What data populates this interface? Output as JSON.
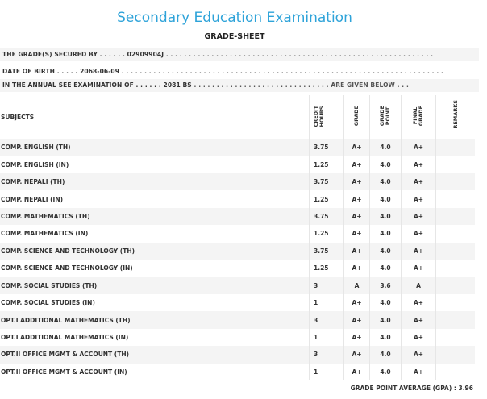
{
  "header": {
    "title": "Secondary Education Examination",
    "subtitle": "GRADE-SHEET"
  },
  "info": {
    "secured_by_prefix": "THE GRADE(S) SECURED BY . . . . . .",
    "symbol_no": "02909904J",
    "secured_by_suffix": ". . . . . . . . . . . . . . . . . . . . . . . . . . . . . . . . . . . . . . . . . . . . . . . . . . . . . . . . . . .",
    "dob_prefix": "DATE OF BIRTH . . . . .",
    "dob": "2068-06-09",
    "dob_suffix": ". . . . . . . . . . . . . . . . . . . . . . . . . . . . . . . . . . . . . . . . . . . . . . . . . . . . . . . . . . . . . . . . . . . . . . .",
    "exam_prefix": "IN THE ANNUAL SEE EXAMINATION OF . . . . . .",
    "exam_year": "2081 BS",
    "exam_suffix": ". . . . . . . . . . . . . . . . . . . . . . . . . . . . . . ARE GIVEN BELOW . . ."
  },
  "table": {
    "headers": {
      "subjects": "SUBJECTS",
      "credit_hours": "CREDIT\nHOURS",
      "grade": "GRADE",
      "grade_point": "GRADE\nPOINT",
      "final_grade": "FINAL\nGRADE",
      "remarks": "REMARKS"
    },
    "rows": [
      {
        "subject": "COMP. ENGLISH (TH)",
        "credit": "3.75",
        "grade": "A+",
        "gp": "4.0",
        "final": "A+"
      },
      {
        "subject": "COMP. ENGLISH (IN)",
        "credit": "1.25",
        "grade": "A+",
        "gp": "4.0",
        "final": "A+"
      },
      {
        "subject": "COMP. NEPALI (TH)",
        "credit": "3.75",
        "grade": "A+",
        "gp": "4.0",
        "final": "A+"
      },
      {
        "subject": "COMP. NEPALI (IN)",
        "credit": "1.25",
        "grade": "A+",
        "gp": "4.0",
        "final": "A+"
      },
      {
        "subject": "COMP. MATHEMATICS (TH)",
        "credit": "3.75",
        "grade": "A+",
        "gp": "4.0",
        "final": "A+"
      },
      {
        "subject": "COMP. MATHEMATICS (IN)",
        "credit": "1.25",
        "grade": "A+",
        "gp": "4.0",
        "final": "A+"
      },
      {
        "subject": "COMP. SCIENCE AND TECHNOLOGY (TH)",
        "credit": "3.75",
        "grade": "A+",
        "gp": "4.0",
        "final": "A+"
      },
      {
        "subject": "COMP. SCIENCE AND TECHNOLOGY (IN)",
        "credit": "1.25",
        "grade": "A+",
        "gp": "4.0",
        "final": "A+"
      },
      {
        "subject": "COMP. SOCIAL STUDIES (TH)",
        "credit": "3",
        "grade": "A",
        "gp": "3.6",
        "final": "A"
      },
      {
        "subject": "COMP. SOCIAL STUDIES (IN)",
        "credit": "1",
        "grade": "A+",
        "gp": "4.0",
        "final": "A+"
      },
      {
        "subject": "OPT.I ADDITIONAL MATHEMATICS (TH)",
        "credit": "3",
        "grade": "A+",
        "gp": "4.0",
        "final": "A+"
      },
      {
        "subject": "OPT.I ADDITIONAL MATHEMATICS (IN)",
        "credit": "1",
        "grade": "A+",
        "gp": "4.0",
        "final": "A+"
      },
      {
        "subject": "OPT.II OFFICE MGMT & ACCOUNT (TH)",
        "credit": "3",
        "grade": "A+",
        "gp": "4.0",
        "final": "A+"
      },
      {
        "subject": "OPT.II OFFICE MGMT & ACCOUNT (IN)",
        "credit": "1",
        "grade": "A+",
        "gp": "4.0",
        "final": "A+"
      }
    ]
  },
  "footer": {
    "gpa_label": "GRADE POINT AVERAGE (GPA) :",
    "gpa_value": "3.96"
  },
  "colors": {
    "title": "#2ea3d9",
    "row_alt": "#f4f4f4"
  }
}
